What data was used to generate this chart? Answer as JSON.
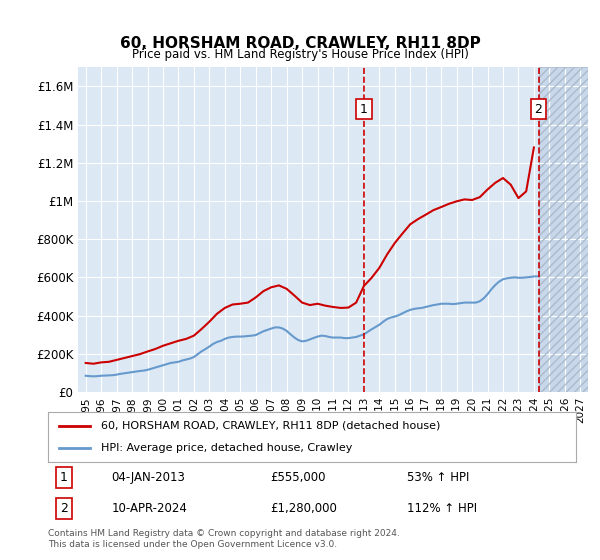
{
  "title": "60, HORSHAM ROAD, CRAWLEY, RH11 8DP",
  "subtitle": "Price paid vs. HM Land Registry's House Price Index (HPI)",
  "background_color": "#ffffff",
  "plot_bg_color": "#dce9f5",
  "hatch_bg_color": "#c8d8ea",
  "ylabel_values": [
    "£0",
    "£200K",
    "£400K",
    "£600K",
    "£800K",
    "£1M",
    "£1.2M",
    "£1.4M",
    "£1.6M"
  ],
  "y_values": [
    0,
    200000,
    400000,
    600000,
    800000,
    1000000,
    1200000,
    1400000,
    1600000
  ],
  "ylim": [
    0,
    1700000
  ],
  "xlim_start": 1994.5,
  "xlim_end": 2027.5,
  "x_ticks": [
    1995,
    1996,
    1997,
    1998,
    1999,
    2000,
    2001,
    2002,
    2003,
    2004,
    2005,
    2006,
    2007,
    2008,
    2009,
    2010,
    2011,
    2012,
    2013,
    2014,
    2015,
    2016,
    2017,
    2018,
    2019,
    2020,
    2021,
    2022,
    2023,
    2024,
    2025,
    2026,
    2027
  ],
  "vline1_x": 2013.0,
  "vline2_x": 2024.3,
  "marker1_label": "1",
  "marker2_label": "2",
  "marker1_y": 1480000,
  "marker2_y": 1480000,
  "red_line_color": "#cc0000",
  "blue_line_color": "#6699cc",
  "legend_red_label": "60, HORSHAM ROAD, CRAWLEY, RH11 8DP (detached house)",
  "legend_blue_label": "HPI: Average price, detached house, Crawley",
  "ann1_num": "1",
  "ann1_date": "04-JAN-2013",
  "ann1_price": "£555,000",
  "ann1_hpi": "53% ↑ HPI",
  "ann2_num": "2",
  "ann2_date": "10-APR-2024",
  "ann2_price": "£1,280,000",
  "ann2_hpi": "112% ↑ HPI",
  "footer": "Contains HM Land Registry data © Crown copyright and database right 2024.\nThis data is licensed under the Open Government Licence v3.0.",
  "hpi_data_x": [
    1995,
    1995.25,
    1995.5,
    1995.75,
    1996,
    1996.25,
    1996.5,
    1996.75,
    1997,
    1997.25,
    1997.5,
    1997.75,
    1998,
    1998.25,
    1998.5,
    1998.75,
    1999,
    1999.25,
    1999.5,
    1999.75,
    2000,
    2000.25,
    2000.5,
    2000.75,
    2001,
    2001.25,
    2001.5,
    2001.75,
    2002,
    2002.25,
    2002.5,
    2002.75,
    2003,
    2003.25,
    2003.5,
    2003.75,
    2004,
    2004.25,
    2004.5,
    2004.75,
    2005,
    2005.25,
    2005.5,
    2005.75,
    2006,
    2006.25,
    2006.5,
    2006.75,
    2007,
    2007.25,
    2007.5,
    2007.75,
    2008,
    2008.25,
    2008.5,
    2008.75,
    2009,
    2009.25,
    2009.5,
    2009.75,
    2010,
    2010.25,
    2010.5,
    2010.75,
    2011,
    2011.25,
    2011.5,
    2011.75,
    2012,
    2012.25,
    2012.5,
    2012.75,
    2013,
    2013.25,
    2013.5,
    2013.75,
    2014,
    2014.25,
    2014.5,
    2014.75,
    2015,
    2015.25,
    2015.5,
    2015.75,
    2016,
    2016.25,
    2016.5,
    2016.75,
    2017,
    2017.25,
    2017.5,
    2017.75,
    2018,
    2018.25,
    2018.5,
    2018.75,
    2019,
    2019.25,
    2019.5,
    2019.75,
    2020,
    2020.25,
    2020.5,
    2020.75,
    2021,
    2021.25,
    2021.5,
    2021.75,
    2022,
    2022.25,
    2022.5,
    2022.75,
    2023,
    2023.25,
    2023.5,
    2023.75,
    2024,
    2024.25
  ],
  "hpi_data_y": [
    85000,
    83000,
    82000,
    83000,
    85000,
    86000,
    87000,
    88000,
    91000,
    95000,
    98000,
    101000,
    104000,
    107000,
    110000,
    112000,
    116000,
    122000,
    128000,
    134000,
    140000,
    146000,
    152000,
    155000,
    158000,
    165000,
    170000,
    175000,
    183000,
    198000,
    213000,
    225000,
    238000,
    252000,
    262000,
    268000,
    278000,
    285000,
    288000,
    290000,
    290000,
    291000,
    293000,
    295000,
    298000,
    308000,
    318000,
    325000,
    332000,
    338000,
    338000,
    332000,
    320000,
    302000,
    285000,
    272000,
    265000,
    268000,
    275000,
    283000,
    290000,
    295000,
    293000,
    288000,
    285000,
    285000,
    285000,
    282000,
    282000,
    285000,
    288000,
    295000,
    302000,
    315000,
    328000,
    340000,
    352000,
    368000,
    382000,
    390000,
    395000,
    402000,
    412000,
    422000,
    430000,
    435000,
    438000,
    440000,
    445000,
    450000,
    455000,
    458000,
    462000,
    462000,
    462000,
    460000,
    462000,
    465000,
    468000,
    468000,
    468000,
    468000,
    475000,
    490000,
    512000,
    538000,
    560000,
    578000,
    590000,
    595000,
    598000,
    600000,
    598000,
    598000,
    600000,
    602000,
    605000,
    605000
  ],
  "price_data_x": [
    1995,
    1995.5,
    1996,
    1996.5,
    1997,
    1997.5,
    1998,
    1998.5,
    1999,
    1999.5,
    2000,
    2000.5,
    2001,
    2001.5,
    2002,
    2002.5,
    2003,
    2003.5,
    2004,
    2004.5,
    2005,
    2005.5,
    2006,
    2006.5,
    2007,
    2007.5,
    2008,
    2008.5,
    2009,
    2009.5,
    2010,
    2010.5,
    2011,
    2011.5,
    2012,
    2012.5,
    2013,
    2013.5,
    2014,
    2014.5,
    2015,
    2015.5,
    2016,
    2016.5,
    2017,
    2017.5,
    2018,
    2018.5,
    2019,
    2019.5,
    2020,
    2020.5,
    2021,
    2021.5,
    2022,
    2022.5,
    2023,
    2023.5,
    2024
  ],
  "price_data_y": [
    152000,
    148000,
    155000,
    158000,
    168000,
    178000,
    188000,
    198000,
    212000,
    225000,
    242000,
    255000,
    268000,
    278000,
    295000,
    330000,
    368000,
    410000,
    440000,
    458000,
    462000,
    468000,
    495000,
    528000,
    548000,
    558000,
    540000,
    505000,
    468000,
    455000,
    462000,
    452000,
    445000,
    440000,
    442000,
    468000,
    555000,
    598000,
    650000,
    720000,
    780000,
    830000,
    878000,
    905000,
    928000,
    952000,
    968000,
    985000,
    998000,
    1008000,
    1005000,
    1020000,
    1060000,
    1095000,
    1120000,
    1085000,
    1015000,
    1050000,
    1280000
  ],
  "future_start_x": 2024.3,
  "grid_color": "#ffffff",
  "font_family": "DejaVu Sans"
}
